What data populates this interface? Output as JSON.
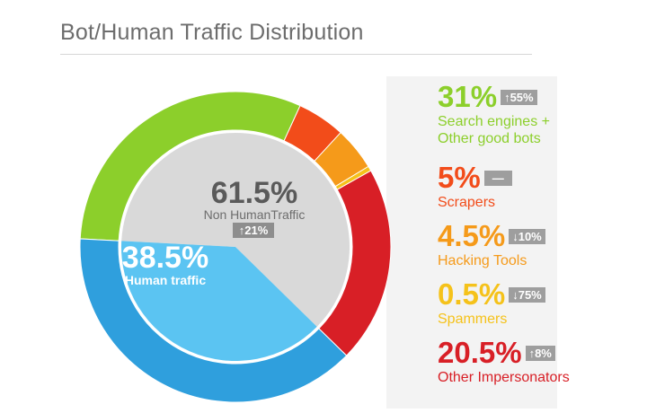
{
  "title": "Bot/Human Traffic Distribution",
  "chart_data": {
    "type": "pie",
    "inner": [
      {
        "name": "Non HumanTraffic",
        "value": 61.5,
        "label": "61.5%",
        "change": "↑21%",
        "color": "#d9d9d9"
      },
      {
        "name": "Human traffic",
        "value": 38.5,
        "label": "38.5%",
        "color": "#5bc4f2"
      }
    ],
    "outer": [
      {
        "name": "Search engines + Other good bots",
        "value": 31,
        "label": "31%",
        "change": "↑55%",
        "color": "#8ccf2b"
      },
      {
        "name": "Scrapers",
        "value": 5,
        "label": "5%",
        "change": "—",
        "color": "#f24c1a"
      },
      {
        "name": "Hacking Tools",
        "value": 4.5,
        "label": "4.5%",
        "change": "↓10%",
        "color": "#f59a1a"
      },
      {
        "name": "Spammers",
        "value": 0.5,
        "label": "0.5%",
        "change": "↓75%",
        "color": "#f5c21a"
      },
      {
        "name": "Other Impersonators",
        "value": 20.5,
        "label": "20.5%",
        "change": "↑8%",
        "color": "#d81f26"
      },
      {
        "name": "Human traffic",
        "value": 38.5,
        "color": "#2f9fdd"
      }
    ]
  },
  "legend": [
    {
      "value": "31%",
      "change": "↑55%",
      "label_lines": [
        "Search engines +",
        "Other good bots"
      ],
      "color": "#8ccf2b"
    },
    {
      "value": "5%",
      "change": "—",
      "label_lines": [
        "Scrapers"
      ],
      "color": "#f24c1a"
    },
    {
      "value": "4.5%",
      "change": "↓10%",
      "label_lines": [
        "Hacking Tools"
      ],
      "color": "#f59a1a"
    },
    {
      "value": "0.5%",
      "change": "↓75%",
      "label_lines": [
        "Spammers"
      ],
      "color": "#f5c21a"
    },
    {
      "value": "20.5%",
      "change": "↑8%",
      "label_lines": [
        "Other Impersonators"
      ],
      "color": "#d81f26"
    }
  ]
}
